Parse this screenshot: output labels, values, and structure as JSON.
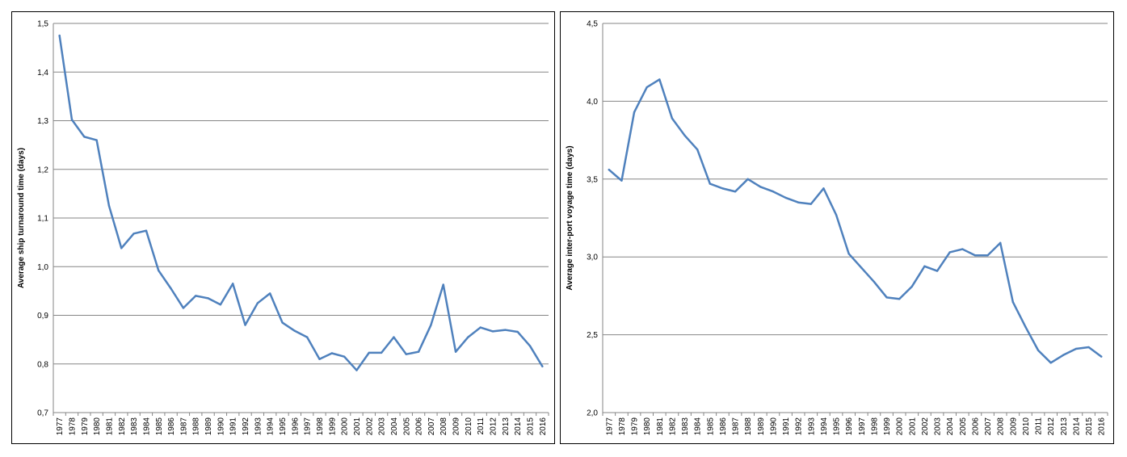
{
  "chart_data": [
    {
      "type": "line",
      "title": "",
      "xlabel": "",
      "ylabel": "Average ship turnaround time (days)",
      "ylim": [
        0.7,
        1.5
      ],
      "yticks": [
        "0,7",
        "0,8",
        "0,9",
        "1,0",
        "1,1",
        "1,2",
        "1,3",
        "1,4",
        "1,5"
      ],
      "grid": true,
      "legend": "none",
      "color": "#4f81bd",
      "categories": [
        "1977",
        "1978",
        "1979",
        "1980",
        "1981",
        "1982",
        "1983",
        "1984",
        "1985",
        "1986",
        "1987",
        "1988",
        "1989",
        "1990",
        "1991",
        "1992",
        "1993",
        "1994",
        "1995",
        "1996",
        "1997",
        "1998",
        "1999",
        "2000",
        "2001",
        "2002",
        "2003",
        "2004",
        "2005",
        "2006",
        "2007",
        "2008",
        "2009",
        "2010",
        "2011",
        "2012",
        "2013",
        "2014",
        "2015",
        "2016"
      ],
      "series": [
        {
          "values": [
            1.475,
            1.302,
            1.267,
            1.26,
            1.125,
            1.038,
            1.068,
            1.074,
            0.992,
            0.955,
            0.915,
            0.94,
            0.935,
            0.922,
            0.965,
            0.88,
            0.925,
            0.945,
            0.885,
            0.868,
            0.855,
            0.81,
            0.822,
            0.815,
            0.787,
            0.823,
            0.823,
            0.855,
            0.82,
            0.825,
            0.88,
            0.963,
            0.825,
            0.855,
            0.875,
            0.867,
            0.87,
            0.866,
            0.837,
            0.795
          ]
        }
      ]
    },
    {
      "type": "line",
      "title": "",
      "xlabel": "",
      "ylabel": "Average inter-port voyage time (days)",
      "ylim": [
        2.0,
        4.5
      ],
      "yticks": [
        "2,0",
        "2,5",
        "3,0",
        "3,5",
        "4,0",
        "4,5"
      ],
      "grid": true,
      "legend": "none",
      "color": "#4f81bd",
      "categories": [
        "1977",
        "1978",
        "1979",
        "1980",
        "1981",
        "1982",
        "1983",
        "1984",
        "1985",
        "1986",
        "1987",
        "1988",
        "1989",
        "1990",
        "1991",
        "1992",
        "1993",
        "1994",
        "1995",
        "1996",
        "1997",
        "1998",
        "1999",
        "2000",
        "2001",
        "2002",
        "2003",
        "2004",
        "2005",
        "2006",
        "2007",
        "2008",
        "2009",
        "2010",
        "2011",
        "2012",
        "2013",
        "2014",
        "2015",
        "2016"
      ],
      "series": [
        {
          "values": [
            3.56,
            3.49,
            3.93,
            4.09,
            4.14,
            3.89,
            3.78,
            3.69,
            3.47,
            3.44,
            3.42,
            3.5,
            3.45,
            3.42,
            3.38,
            3.35,
            3.34,
            3.44,
            3.27,
            3.02,
            2.93,
            2.84,
            2.74,
            2.73,
            2.81,
            2.94,
            2.91,
            3.03,
            3.05,
            3.01,
            3.01,
            3.09,
            2.71,
            2.55,
            2.4,
            2.32,
            2.37,
            2.41,
            2.42,
            2.36
          ]
        }
      ]
    }
  ]
}
